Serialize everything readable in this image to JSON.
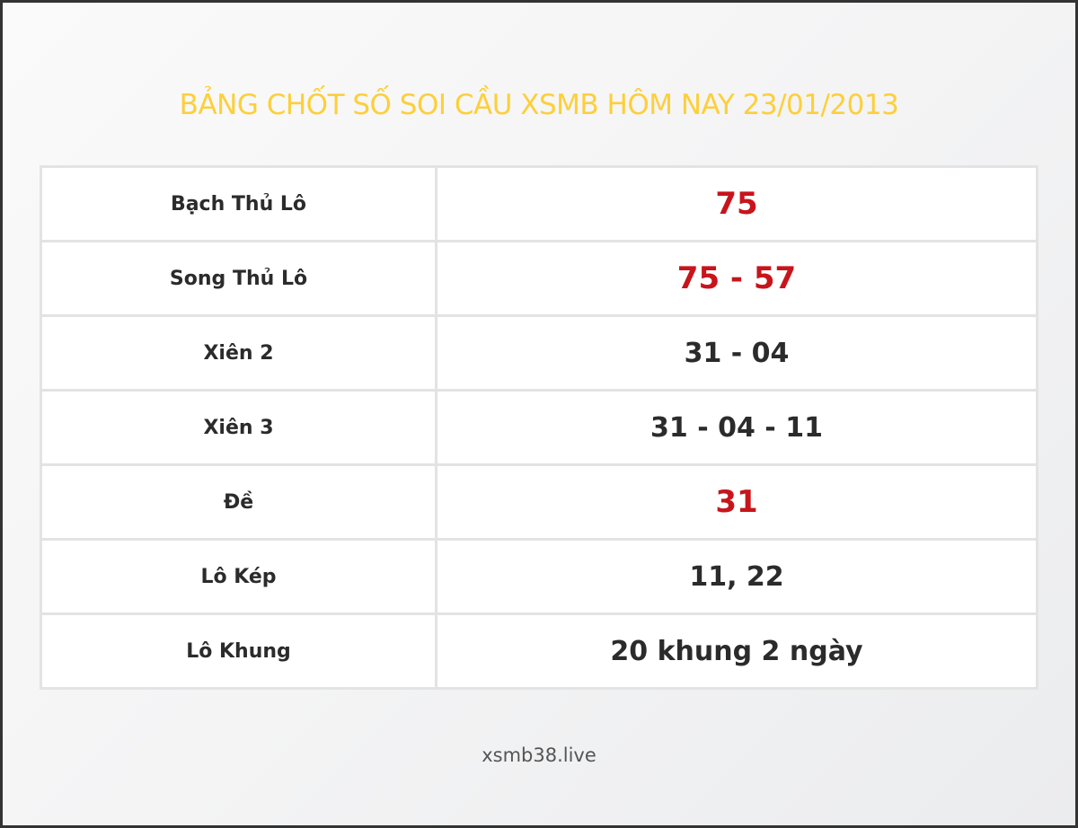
{
  "title": "BẢNG CHỐT SỐ SOI CẦU XSMB HÔM NAY 23/01/2013",
  "rows": [
    {
      "label": "Bạch Thủ Lô",
      "value": "75",
      "highlight": true
    },
    {
      "label": "Song Thủ Lô",
      "value": "75 - 57",
      "highlight": true
    },
    {
      "label": "Xiên 2",
      "value": "31 - 04",
      "highlight": false
    },
    {
      "label": "Xiên 3",
      "value": "31 - 04 - 11",
      "highlight": false
    },
    {
      "label": "Đề",
      "value": "31",
      "highlight": true
    },
    {
      "label": "Lô Kép",
      "value": "11, 22",
      "highlight": false
    },
    {
      "label": "Lô Khung",
      "value": "20 khung 2 ngày",
      "highlight": false
    }
  ],
  "footer": "xsmb38.live",
  "colors": {
    "title": "#fdcf3a",
    "highlight": "#c8141b",
    "text": "#2b2b2b"
  }
}
